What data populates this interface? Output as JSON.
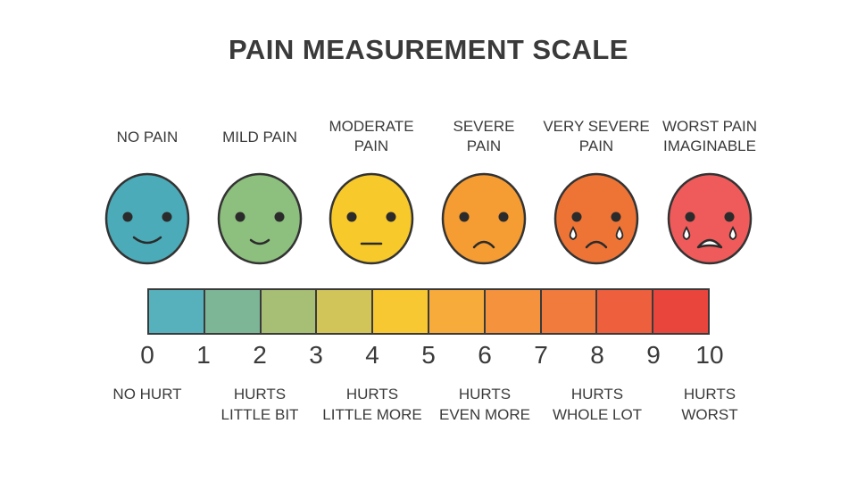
{
  "title": "PAIN MEASUREMENT SCALE",
  "faces": [
    {
      "label": "NO PAIN",
      "color": "#4BABB8",
      "mouth": "big-smile",
      "tears": false
    },
    {
      "label": "MILD PAIN",
      "color": "#8DBF7E",
      "mouth": "small-smile",
      "tears": false
    },
    {
      "label": "MODERATE\nPAIN",
      "color": "#F7C92A",
      "mouth": "flat",
      "tears": false
    },
    {
      "label": "SEVERE\nPAIN",
      "color": "#F59C32",
      "mouth": "frown",
      "tears": false
    },
    {
      "label": "VERY SEVERE\nPAIN",
      "color": "#EE7436",
      "mouth": "frown",
      "tears": true
    },
    {
      "label": "WORST PAIN\nIMAGINABLE",
      "color": "#EF5B5B",
      "mouth": "open",
      "tears": true
    }
  ],
  "scale": {
    "ticks": [
      "0",
      "1",
      "2",
      "3",
      "4",
      "5",
      "6",
      "7",
      "8",
      "9",
      "10"
    ],
    "segment_colors": [
      "#56B1BD",
      "#7DB597",
      "#A7BE75",
      "#D1C459",
      "#F8C832",
      "#F6AB3A",
      "#F4923E",
      "#F07B3D",
      "#EE5F3E",
      "#E9453D"
    ]
  },
  "descriptions": [
    {
      "text": "NO HURT",
      "at": 0
    },
    {
      "text": "HURTS\nLITTLE BIT",
      "at": 2
    },
    {
      "text": "HURTS\nLITTLE MORE",
      "at": 4
    },
    {
      "text": "HURTS\nEVEN MORE",
      "at": 6
    },
    {
      "text": "HURTS\nWHOLE LOT",
      "at": 8
    },
    {
      "text": "HURTS\nWORST",
      "at": 10
    }
  ]
}
